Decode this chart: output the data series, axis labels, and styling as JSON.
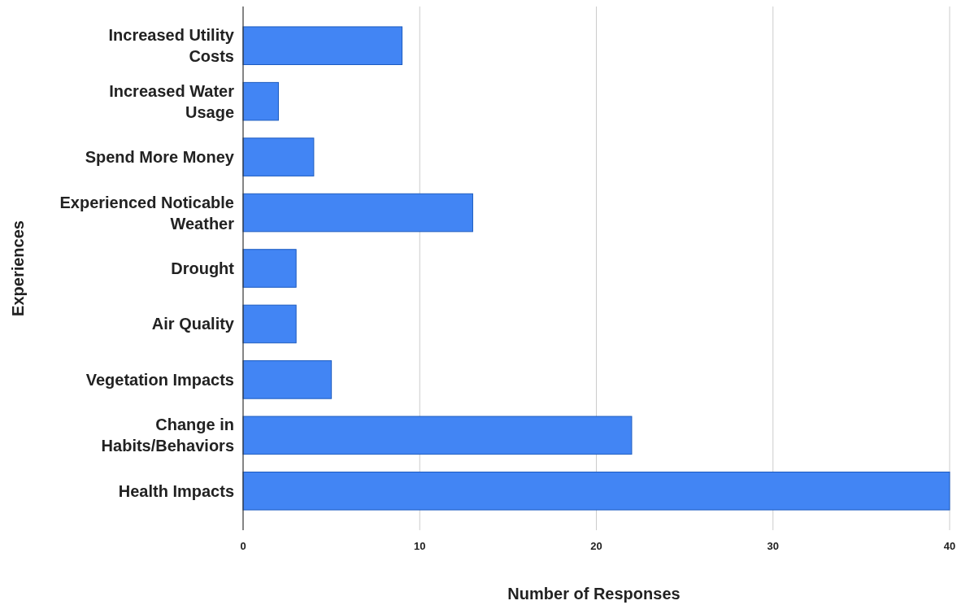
{
  "chart_data": {
    "type": "bar",
    "orientation": "horizontal",
    "xlabel": "Number of Responses",
    "ylabel": "Experiences",
    "categories": [
      "Increased Utility Costs",
      "Increased Water Usage",
      "Spend More Money",
      "Experienced Noticable Weather",
      "Drought",
      "Air Quality",
      "Vegetation Impacts",
      "Change in Habits/Behaviors",
      "Health Impacts"
    ],
    "values": [
      9,
      2,
      4,
      13,
      3,
      3,
      5,
      22,
      40
    ],
    "color": "#4285f4",
    "xlim": [
      0,
      40
    ],
    "xticks": [
      0,
      10,
      20,
      30,
      40
    ],
    "grid": "x"
  }
}
